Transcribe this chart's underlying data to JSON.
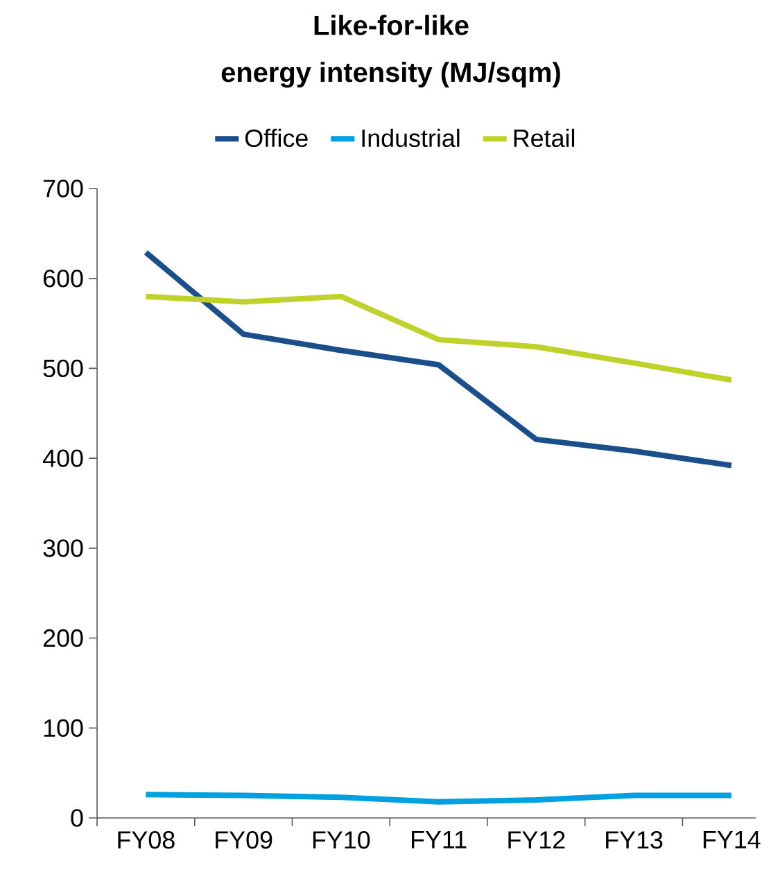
{
  "chart_data": {
    "type": "line",
    "title": "Like-for-like\nenergy intensity (MJ/sqm)",
    "categories": [
      "FY08",
      "FY09",
      "FY10",
      "FY11",
      "FY12",
      "FY13",
      "FY14"
    ],
    "series": [
      {
        "name": "Office",
        "color": "#1b4f8c",
        "values": [
          629,
          538,
          520,
          504,
          421,
          408,
          392
        ]
      },
      {
        "name": "Industrial",
        "color": "#00a1e0",
        "values": [
          26,
          25,
          23,
          18,
          20,
          25,
          25
        ]
      },
      {
        "name": "Retail",
        "color": "#bfd22b",
        "values": [
          580,
          574,
          580,
          532,
          524,
          506,
          487
        ]
      }
    ],
    "ylim": [
      0,
      700
    ],
    "yticks": [
      0,
      100,
      200,
      300,
      400,
      500,
      600,
      700
    ],
    "grid": false,
    "legend": "top",
    "marker": "none",
    "line_style": "solid"
  }
}
